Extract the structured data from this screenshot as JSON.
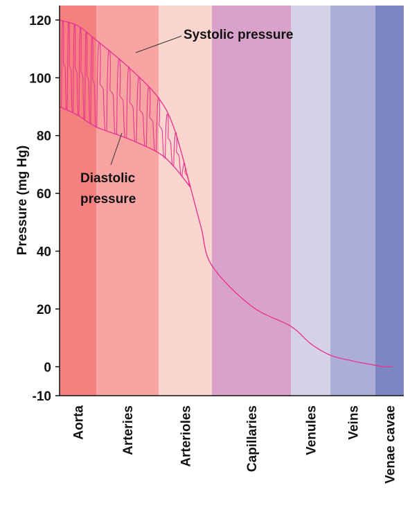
{
  "chart_data": {
    "type": "line",
    "title": "",
    "xlabel": "",
    "ylabel": "Pressure (mg Hg)",
    "ylim": [
      -10,
      125
    ],
    "yticks": [
      -10,
      0,
      20,
      40,
      60,
      80,
      100,
      120
    ],
    "grid": false,
    "legend": "none",
    "line_color": "#e8368f",
    "categories": [
      "Aorta",
      "Arteries",
      "Arterioles",
      "Capillaries",
      "Venules",
      "Veins",
      "Venae cavae"
    ],
    "region_colors": [
      "#f4807f",
      "#f8a4a2",
      "#fad6cf",
      "#d9a2cb",
      "#d5d2e8",
      "#abaed6",
      "#7d87c3"
    ],
    "series": [
      {
        "name": "Systolic pressure",
        "x": [
          0,
          0.5,
          1.0,
          1.5,
          2.0,
          2.3,
          2.6,
          2.8,
          3.0,
          3.5,
          4.0,
          4.5,
          5.0,
          5.5,
          6.0,
          6.3,
          6.6
        ],
        "y": [
          120,
          118,
          113,
          104,
          93,
          82,
          62,
          48,
          35,
          21,
          14,
          8,
          4,
          2,
          0.5,
          0,
          0
        ]
      },
      {
        "name": "Diastolic pressure",
        "x": [
          0,
          0.5,
          1.0,
          1.5,
          2.0,
          2.3,
          2.6
        ],
        "y": [
          90,
          87,
          83,
          79,
          74,
          69,
          62
        ]
      }
    ],
    "annotations": [
      {
        "text": "Systolic pressure",
        "points_to": "Systolic pressure"
      },
      {
        "text": "Diastolic pressure",
        "points_to": "Diastolic pressure"
      }
    ]
  }
}
